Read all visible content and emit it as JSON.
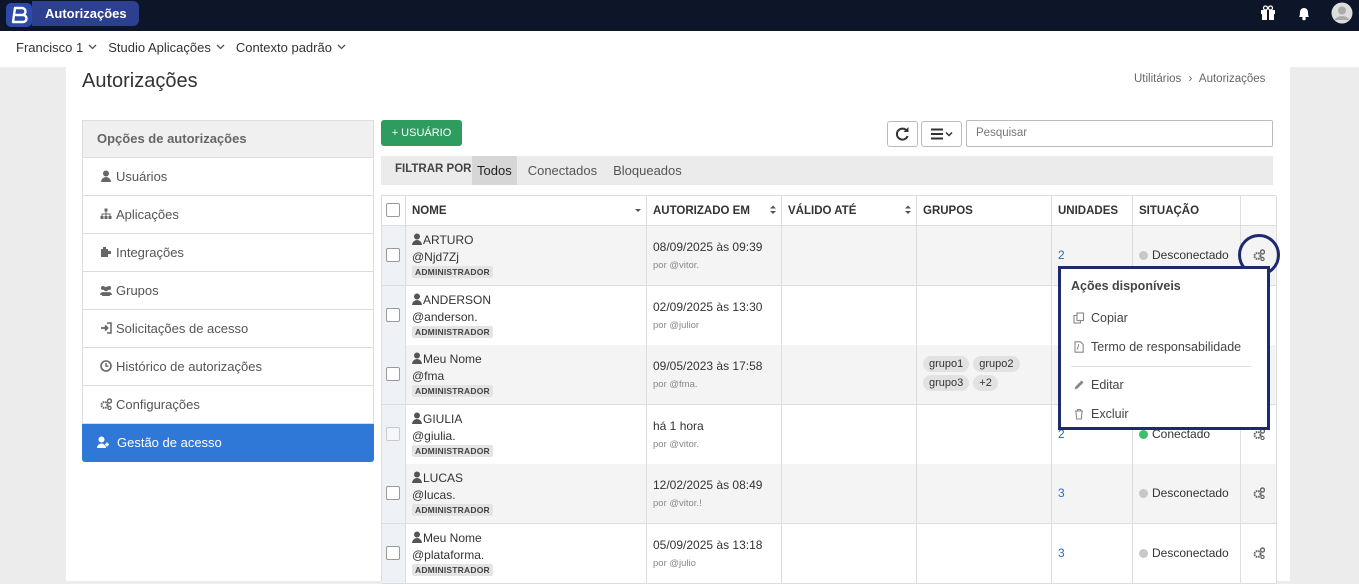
{
  "topbar": {
    "app_title": "Autorizações"
  },
  "context": {
    "items": [
      "Francisco 1",
      "Studio Aplicações",
      "Contexto padrão"
    ]
  },
  "page": {
    "title": "Autorizações",
    "breadcrumb": [
      "Utilitários",
      "Autorizações"
    ]
  },
  "sidebar": {
    "header": "Opções de autorizações",
    "items": [
      {
        "label": "Usuários"
      },
      {
        "label": "Aplicações"
      },
      {
        "label": "Integrações"
      },
      {
        "label": "Grupos"
      },
      {
        "label": "Solicitações de acesso"
      },
      {
        "label": "Histórico de autorizações"
      },
      {
        "label": "Configurações"
      },
      {
        "label": "Gestão de acesso",
        "active": true
      }
    ]
  },
  "toolbar": {
    "add_button": "+ USUÁRIO",
    "search_placeholder": "Pesquisar"
  },
  "filter": {
    "label": "FILTRAR POR",
    "options": [
      {
        "label": "Todos",
        "active": true
      },
      {
        "label": "Conectados"
      },
      {
        "label": "Bloqueados"
      }
    ]
  },
  "table": {
    "columns": [
      "NOME",
      "AUTORIZADO EM",
      "VÁLIDO ATÉ",
      "GRUPOS",
      "UNIDADES",
      "SITUAÇÃO"
    ],
    "rows": [
      {
        "name": "ARTURO",
        "handle": "@Njd7Zj",
        "role": "ADMINISTRADOR",
        "authorized": "08/09/2025 às 09:39",
        "by": "por @vitor.",
        "groups": [],
        "units": "2",
        "status": "Desconectado",
        "status_color": "#c8c8c8"
      },
      {
        "name": "ANDERSON",
        "handle": "@anderson.",
        "role": "ADMINISTRADOR",
        "authorized": "02/09/2025 às 13:30",
        "by": "por @julior",
        "groups": []
      },
      {
        "name": "Meu Nome",
        "handle": "@fma",
        "role": "ADMINISTRADOR",
        "authorized": "09/05/2023 às 17:58",
        "by": "por @fma.",
        "groups": [
          "grupo1",
          "grupo2",
          "grupo3",
          "+2"
        ]
      },
      {
        "name": "GIULIA",
        "handle": "@giulia.",
        "role": "ADMINISTRADOR",
        "authorized": "há 1 hora",
        "by": "por @vitor.",
        "groups": [],
        "units": "2",
        "status": "Conectado",
        "status_color": "#3cbf6b"
      },
      {
        "name": "LUCAS",
        "handle": "@lucas.",
        "role": "ADMINISTRADOR",
        "authorized": "12/02/2025 às 08:49",
        "by": "por @vitor.!",
        "groups": [],
        "units": "3",
        "status": "Desconectado",
        "status_color": "#c8c8c8"
      },
      {
        "name": "Meu Nome",
        "handle": "@plataforma.",
        "role": "ADMINISTRADOR",
        "authorized": "05/09/2025 às 13:18",
        "by": "por @julio",
        "groups": [],
        "units": "3",
        "status": "Desconectado",
        "status_color": "#c8c8c8"
      }
    ]
  },
  "dropdown": {
    "title": "Ações disponíveis",
    "items": [
      "Copiar",
      "Termo de responsabilidade",
      "Editar",
      "Excluir"
    ]
  }
}
